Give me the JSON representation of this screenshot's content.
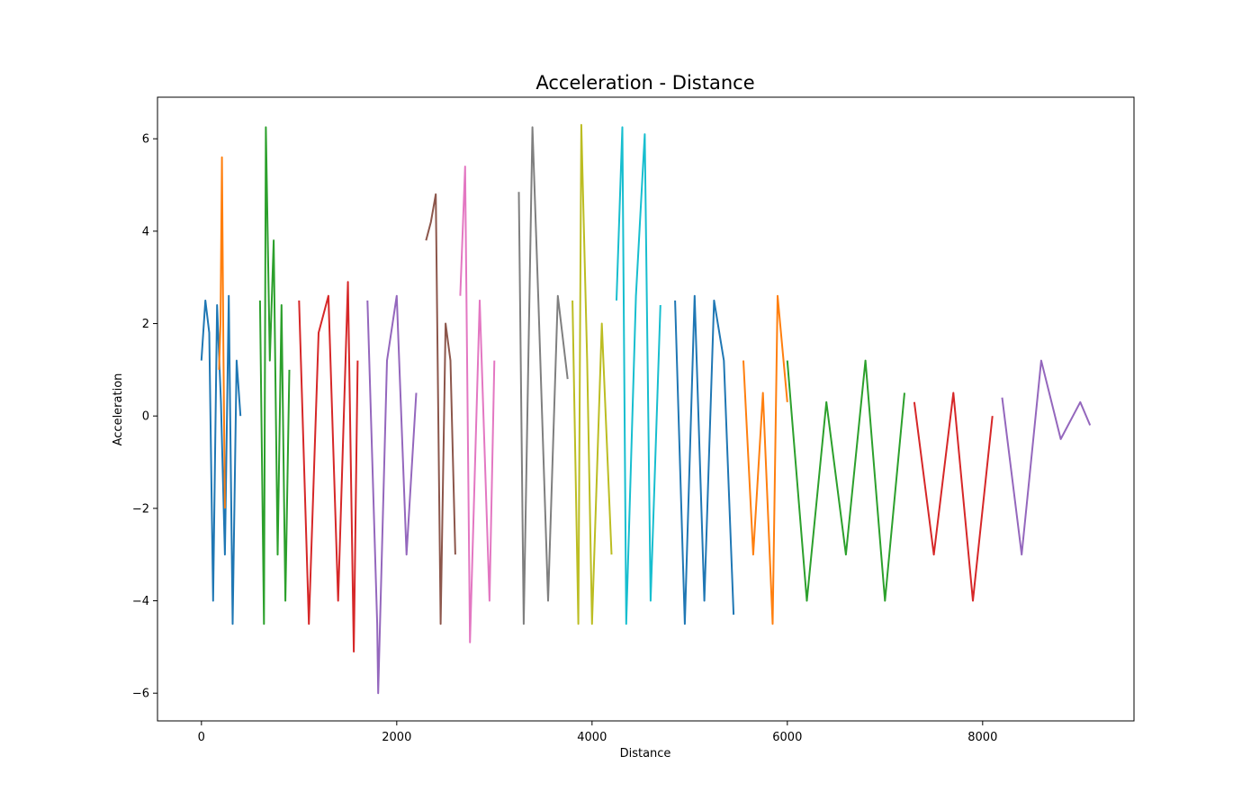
{
  "chart_data": {
    "type": "line",
    "title": "Acceleration - Distance",
    "xlabel": "Distance",
    "ylabel": "Acceleration",
    "xlim": [
      -450,
      9550
    ],
    "ylim": [
      -6.6,
      6.9
    ],
    "xticks": [
      0,
      2000,
      4000,
      6000,
      8000
    ],
    "xtick_labels": [
      "0",
      "2000",
      "4000",
      "6000",
      "8000"
    ],
    "yticks": [
      -6,
      -4,
      -2,
      0,
      2,
      4,
      6
    ],
    "ytick_labels": [
      "−6",
      "−4",
      "−2",
      "0",
      "2",
      "4",
      "6"
    ],
    "grid": false,
    "legend": "none",
    "palette": [
      "#1f77b4",
      "#ff7f0e",
      "#2ca02c",
      "#d62728",
      "#9467bd",
      "#8c564b",
      "#e377c2",
      "#7f7f7f",
      "#bcbd22",
      "#17becf"
    ],
    "series": [
      {
        "x": [
          0,
          40,
          80,
          120,
          160,
          200,
          240,
          280,
          320,
          360,
          400
        ],
        "y": [
          1.2,
          2.5,
          1.8,
          -4.0,
          2.4,
          0.3,
          -3.0,
          2.6,
          -4.5,
          1.2,
          0.0
        ]
      },
      {
        "x": [
          180,
          195,
          210,
          225,
          240
        ],
        "y": [
          1.0,
          2.0,
          5.6,
          1.5,
          -2.0
        ]
      },
      {
        "x": [
          600,
          640,
          660,
          700,
          740,
          780,
          820,
          860,
          900
        ],
        "y": [
          2.5,
          -4.5,
          6.25,
          1.2,
          3.8,
          -3.0,
          2.4,
          -4.0,
          1.0
        ]
      },
      {
        "x": [
          1000,
          1100,
          1200,
          1300,
          1400,
          1500,
          1560,
          1600
        ],
        "y": [
          2.5,
          -4.5,
          1.8,
          2.6,
          -4.0,
          2.9,
          -5.1,
          1.2
        ]
      },
      {
        "x": [
          1700,
          1800,
          1810,
          1900,
          2000,
          2100,
          2200
        ],
        "y": [
          2.5,
          -4.5,
          -6.0,
          1.2,
          2.6,
          -3.0,
          0.5
        ]
      },
      {
        "x": [
          2300,
          2350,
          2400,
          2450,
          2500,
          2550,
          2600
        ],
        "y": [
          3.8,
          4.2,
          4.8,
          -4.5,
          2.0,
          1.2,
          -3.0
        ]
      },
      {
        "x": [
          2650,
          2700,
          2750,
          2850,
          2950,
          3000
        ],
        "y": [
          2.6,
          5.4,
          -4.9,
          2.5,
          -4.0,
          1.2
        ]
      },
      {
        "x": [
          3250,
          3300,
          3390,
          3450,
          3550,
          3650,
          3750
        ],
        "y": [
          4.85,
          -4.5,
          6.25,
          2.5,
          -4.0,
          2.6,
          0.8
        ]
      },
      {
        "x": [
          3800,
          3860,
          3890,
          3950,
          4000,
          4100,
          4200
        ],
        "y": [
          2.5,
          -4.5,
          6.3,
          1.2,
          -4.5,
          2.0,
          -3.0
        ]
      },
      {
        "x": [
          4250,
          4310,
          4350,
          4450,
          4540,
          4600,
          4700
        ],
        "y": [
          2.5,
          6.25,
          -4.5,
          2.6,
          6.1,
          -4.0,
          2.4
        ]
      },
      {
        "x": [
          4850,
          4950,
          5050,
          5150,
          5250,
          5350,
          5450
        ],
        "y": [
          2.5,
          -4.5,
          2.6,
          -4.0,
          2.5,
          1.2,
          -4.3
        ]
      },
      {
        "x": [
          5550,
          5650,
          5750,
          5850,
          5900,
          6000
        ],
        "y": [
          1.2,
          -3.0,
          0.5,
          -4.5,
          2.6,
          0.3
        ]
      },
      {
        "x": [
          6000,
          6200,
          6400,
          6600,
          6800,
          7000,
          7200
        ],
        "y": [
          1.2,
          -4.0,
          0.3,
          -3.0,
          1.2,
          -4.0,
          0.5
        ]
      },
      {
        "x": [
          7300,
          7500,
          7700,
          7900,
          8100
        ],
        "y": [
          0.3,
          -3.0,
          0.5,
          -4.0,
          0.0
        ]
      },
      {
        "x": [
          8200,
          8400,
          8600,
          8800,
          9000,
          9100
        ],
        "y": [
          0.4,
          -3.0,
          1.2,
          -0.5,
          0.3,
          -0.2
        ]
      }
    ]
  }
}
